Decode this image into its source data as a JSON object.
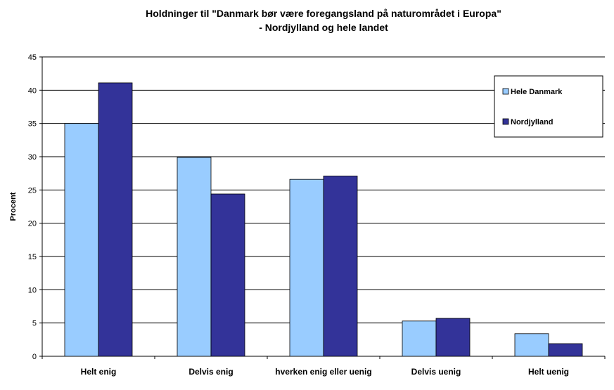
{
  "chart_data": {
    "type": "bar",
    "title": "Holdninger til \"Danmark bør være foregangsland på naturområdet i Europa\"",
    "subtitle": "- Nordjylland og hele landet",
    "y_label": "Procent",
    "categories": [
      "Helt enig",
      "Delvis enig",
      "hverken enig eller uenig",
      "Delvis uenig",
      "Helt uenig"
    ],
    "series": [
      {
        "name": "Hele Danmark",
        "color": "#99ccff",
        "values": [
          35.0,
          29.9,
          26.6,
          5.3,
          3.4
        ]
      },
      {
        "name": "Nordjylland",
        "color": "#333399",
        "values": [
          41.1,
          24.4,
          27.1,
          5.7,
          1.9
        ]
      }
    ],
    "ylim": [
      0,
      45
    ],
    "yticks": [
      0,
      5,
      10,
      15,
      20,
      25,
      30,
      35,
      40,
      45
    ],
    "grid": true,
    "legend": "upper right"
  }
}
